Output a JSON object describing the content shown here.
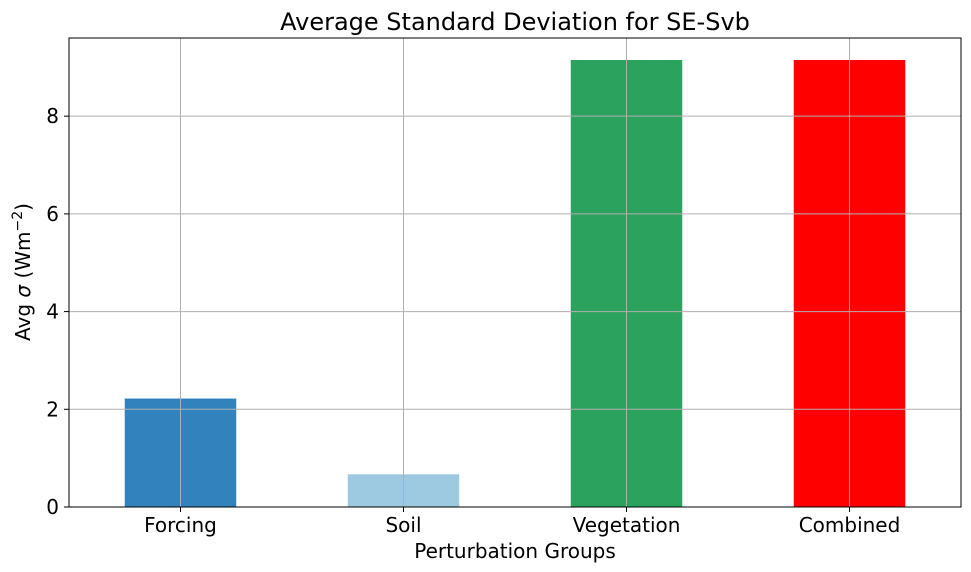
{
  "chart_data": {
    "type": "bar",
    "title": "Average Standard Deviation for SE-Svb",
    "xlabel": "Perturbation Groups",
    "ylabel_prefix": "Avg ",
    "ylabel_symbol": "σ",
    "ylabel_unit_open": " (Wm",
    "ylabel_superscript": "−2",
    "ylabel_unit_close": ")",
    "categories": [
      "Forcing",
      "Soil",
      "Vegetation",
      "Combined"
    ],
    "values": [
      2.22,
      0.67,
      9.15,
      9.15
    ],
    "colors": [
      "#3182bd",
      "#9ecae1",
      "#2ca25f",
      "#ff0000"
    ],
    "ylim": [
      0,
      9.6
    ],
    "yticks": [
      0,
      2,
      4,
      6,
      8
    ],
    "grid": true
  }
}
